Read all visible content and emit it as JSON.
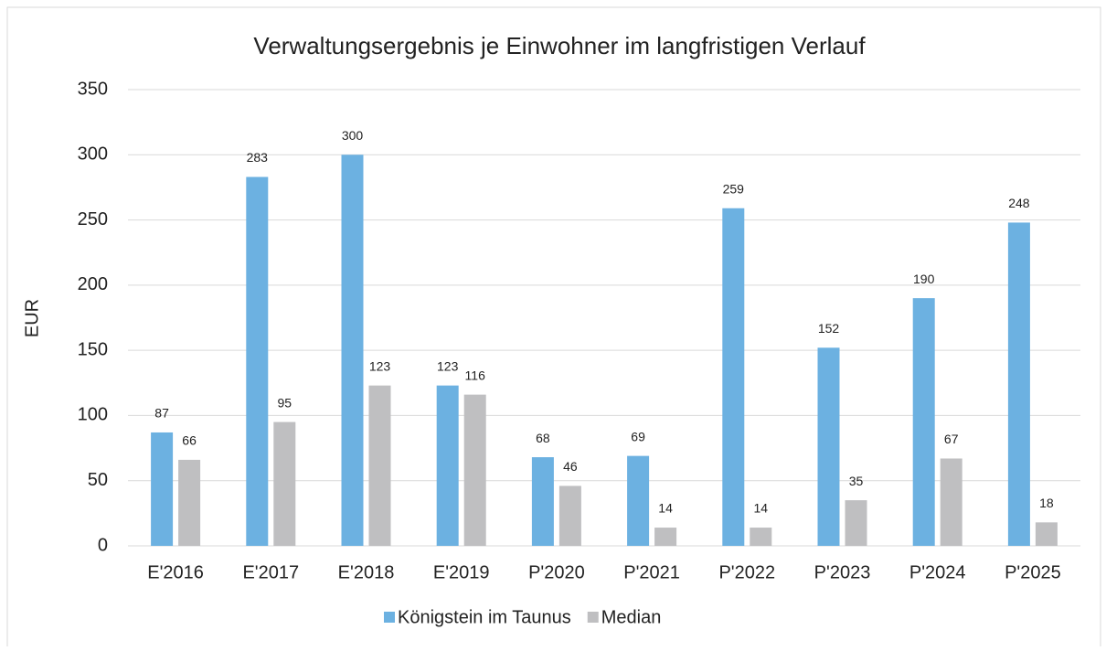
{
  "chart_data": {
    "type": "bar",
    "title": "Verwaltungsergebnis je Einwohner im langfristigen Verlauf",
    "y_label": "EUR",
    "categories": [
      "E'2016",
      "E'2017",
      "E'2018",
      "E'2019",
      "P'2020",
      "P'2021",
      "P'2022",
      "P'2023",
      "P'2024",
      "P'2025"
    ],
    "series": [
      {
        "name": "Königstein im Taunus",
        "color": "#6cb1e1",
        "values": [
          87,
          283,
          300,
          123,
          68,
          69,
          259,
          152,
          190,
          248
        ]
      },
      {
        "name": "Median",
        "color": "#bfbfc1",
        "values": [
          66,
          95,
          123,
          116,
          46,
          14,
          14,
          35,
          67,
          18
        ]
      }
    ],
    "ylim": [
      0,
      350
    ],
    "yticks": [
      0,
      50,
      100,
      150,
      200,
      250,
      300,
      350
    ],
    "grid": true,
    "legend": "bottom"
  }
}
